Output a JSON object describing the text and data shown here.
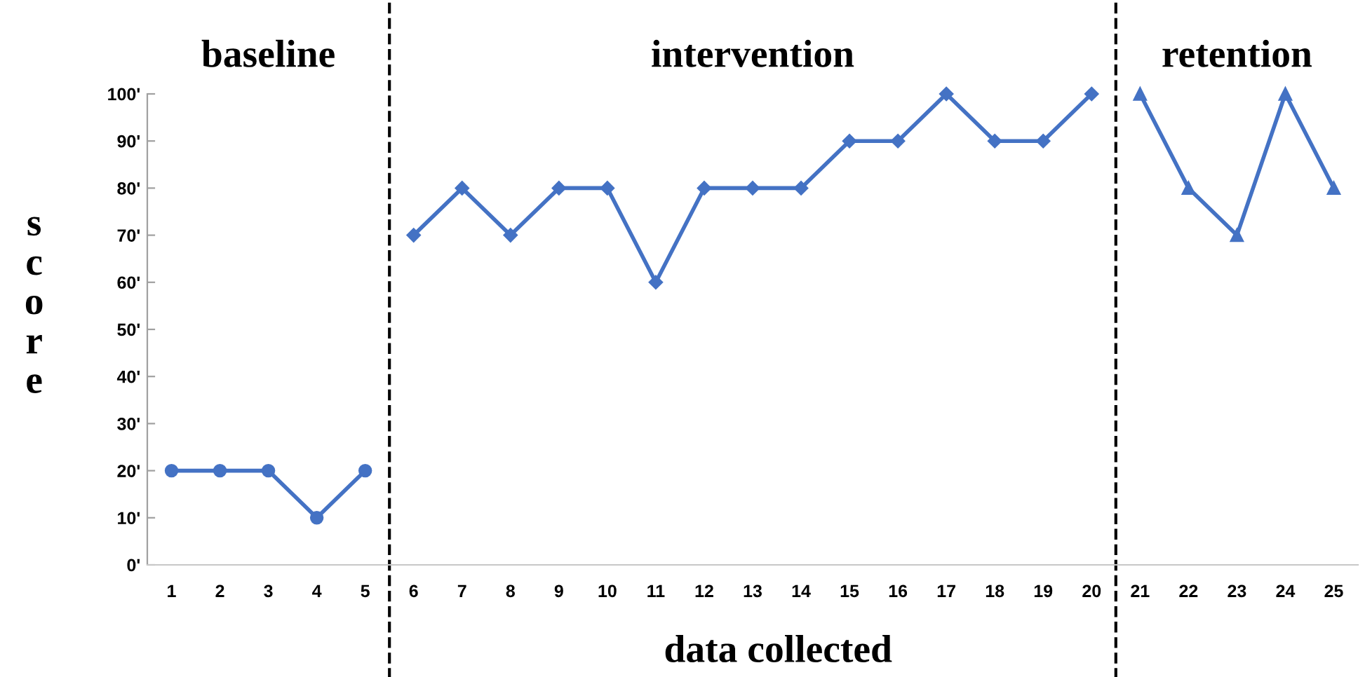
{
  "chart_data": {
    "type": "line",
    "xlabel": "data collected",
    "ylabel": "score",
    "annotations": [
      "baseline",
      "intervention",
      "retention"
    ],
    "series": [
      {
        "color": "#4472c4",
        "marker": "circle",
        "x": [
          1,
          2,
          3,
          4,
          5
        ],
        "values": [
          20,
          20,
          20,
          10,
          20
        ]
      },
      {
        "color": "#4472c4",
        "marker": "diamond",
        "x": [
          6,
          7,
          8,
          9,
          10,
          11,
          12,
          13,
          14,
          15,
          16,
          17,
          18,
          19,
          20
        ],
        "values": [
          70,
          80,
          70,
          80,
          80,
          60,
          80,
          80,
          80,
          90,
          90,
          100,
          90,
          90,
          100
        ]
      },
      {
        "color": "#4472c4",
        "marker": "triangle",
        "x": [
          21,
          22,
          23,
          24,
          25
        ],
        "values": [
          100,
          80,
          70,
          100,
          80
        ]
      }
    ],
    "ref_lines": [
      {
        "axis": "x",
        "value": 5.5,
        "color": "#000000",
        "line_style": "dashed"
      },
      {
        "axis": "x",
        "value": 20.5,
        "color": "#000000",
        "line_style": "dashed"
      }
    ],
    "xlim": [
      0.5,
      25.5
    ],
    "xticks": [
      1,
      2,
      3,
      4,
      5,
      6,
      7,
      8,
      9,
      10,
      11,
      12,
      13,
      14,
      15,
      16,
      17,
      18,
      19,
      20,
      21,
      22,
      23,
      24,
      25
    ],
    "ylim": [
      0,
      100
    ],
    "yticks": [
      {
        "value": 0,
        "label": "0'"
      },
      {
        "value": 10,
        "label": "10'"
      },
      {
        "value": 20,
        "label": "20'"
      },
      {
        "value": 30,
        "label": "30'"
      },
      {
        "value": 40,
        "label": "40'"
      },
      {
        "value": 50,
        "label": "50'"
      },
      {
        "value": 60,
        "label": "60'"
      },
      {
        "value": 70,
        "label": "70'"
      },
      {
        "value": 80,
        "label": "80'"
      },
      {
        "value": 90,
        "label": "90'"
      },
      {
        "value": 100,
        "label": "100'"
      }
    ],
    "line_style": "solid"
  }
}
